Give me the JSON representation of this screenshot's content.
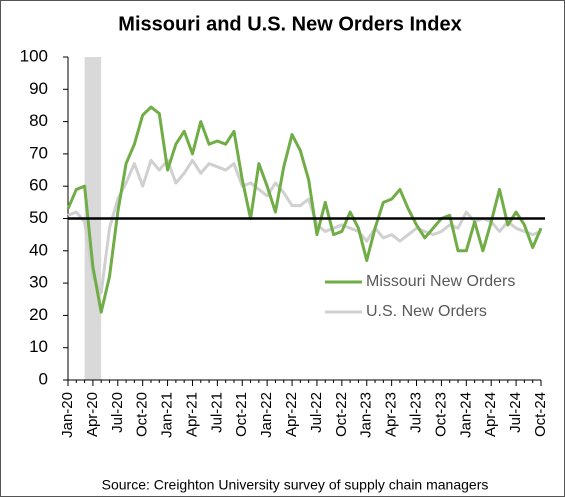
{
  "chart_data": {
    "type": "line",
    "title": "Missouri and U.S. New Orders Index",
    "source": "Source: Creighton University survey of supply chain managers",
    "categories": [
      "Jan-20",
      null,
      null,
      "Apr-20",
      null,
      null,
      "Jul-20",
      null,
      null,
      "Oct-20",
      null,
      null,
      "Jan-21",
      null,
      null,
      "Apr-21",
      null,
      null,
      "Jul-21",
      null,
      null,
      "Oct-21",
      null,
      null,
      "Jan-22",
      null,
      null,
      "Apr-22",
      null,
      null,
      "Jul-22",
      null,
      null,
      "Oct-22",
      null,
      null,
      "Jan-23",
      null,
      null,
      "Apr-23",
      null,
      null,
      "Jul-23",
      null,
      null,
      "Oct-23",
      null,
      null,
      "Jan-24",
      null,
      null,
      "Apr-24",
      null,
      null,
      "Jul-24",
      null,
      null,
      "Oct-24"
    ],
    "series": [
      {
        "name": "Missouri New Orders",
        "color": "#70ad47",
        "values": [
          53,
          59,
          60,
          35,
          21,
          32,
          52,
          67,
          73,
          82,
          84.5,
          82.5,
          65,
          73,
          77,
          70,
          80,
          73,
          74,
          73,
          77,
          62,
          50,
          67,
          60,
          52,
          66,
          76,
          71,
          62,
          45,
          55,
          45,
          46,
          52,
          47,
          37,
          47,
          55,
          56,
          59,
          53,
          48,
          44,
          47,
          50,
          51,
          40,
          40,
          49,
          40,
          49,
          59,
          48,
          52,
          48,
          41,
          47
        ]
      },
      {
        "name": "U.S. New Orders",
        "color": "#d0d0d0",
        "values": [
          51,
          52,
          49,
          32,
          27,
          47,
          56,
          61,
          67,
          60,
          68,
          65,
          68,
          61,
          64,
          68,
          64,
          67,
          66,
          65,
          67,
          60,
          61,
          59,
          57,
          61,
          58,
          54,
          54,
          56,
          48,
          46,
          47,
          48,
          47,
          46,
          43,
          47,
          44,
          45,
          43,
          45,
          47,
          46,
          45,
          46,
          48,
          47,
          52,
          49,
          50,
          49,
          46,
          49,
          47,
          46,
          45,
          46
        ]
      }
    ],
    "ylim": [
      0,
      100
    ],
    "yticks": [
      0,
      10,
      20,
      30,
      40,
      50,
      60,
      70,
      80,
      90,
      100
    ],
    "reference_line": 50,
    "shaded_region": [
      2,
      4
    ]
  }
}
